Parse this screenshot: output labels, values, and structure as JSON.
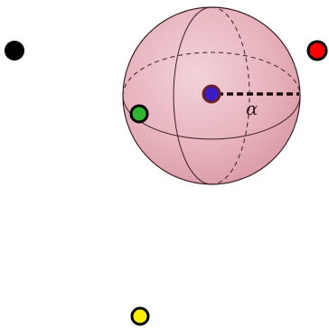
{
  "diagram": {
    "angle_label": "α",
    "colors": {
      "sphere_fill": "#e7b3bd",
      "sphere_edge": "#3a1f24",
      "outline": "#000000",
      "radius_line": "#1a0a0a",
      "point_black": "#000000",
      "point_red": "#ff0000",
      "point_green": "#2fb52f",
      "point_yellow": "#ffee00",
      "point_blue": "#3a1cc9",
      "point_blue_ring": "#8a2a3a"
    }
  }
}
